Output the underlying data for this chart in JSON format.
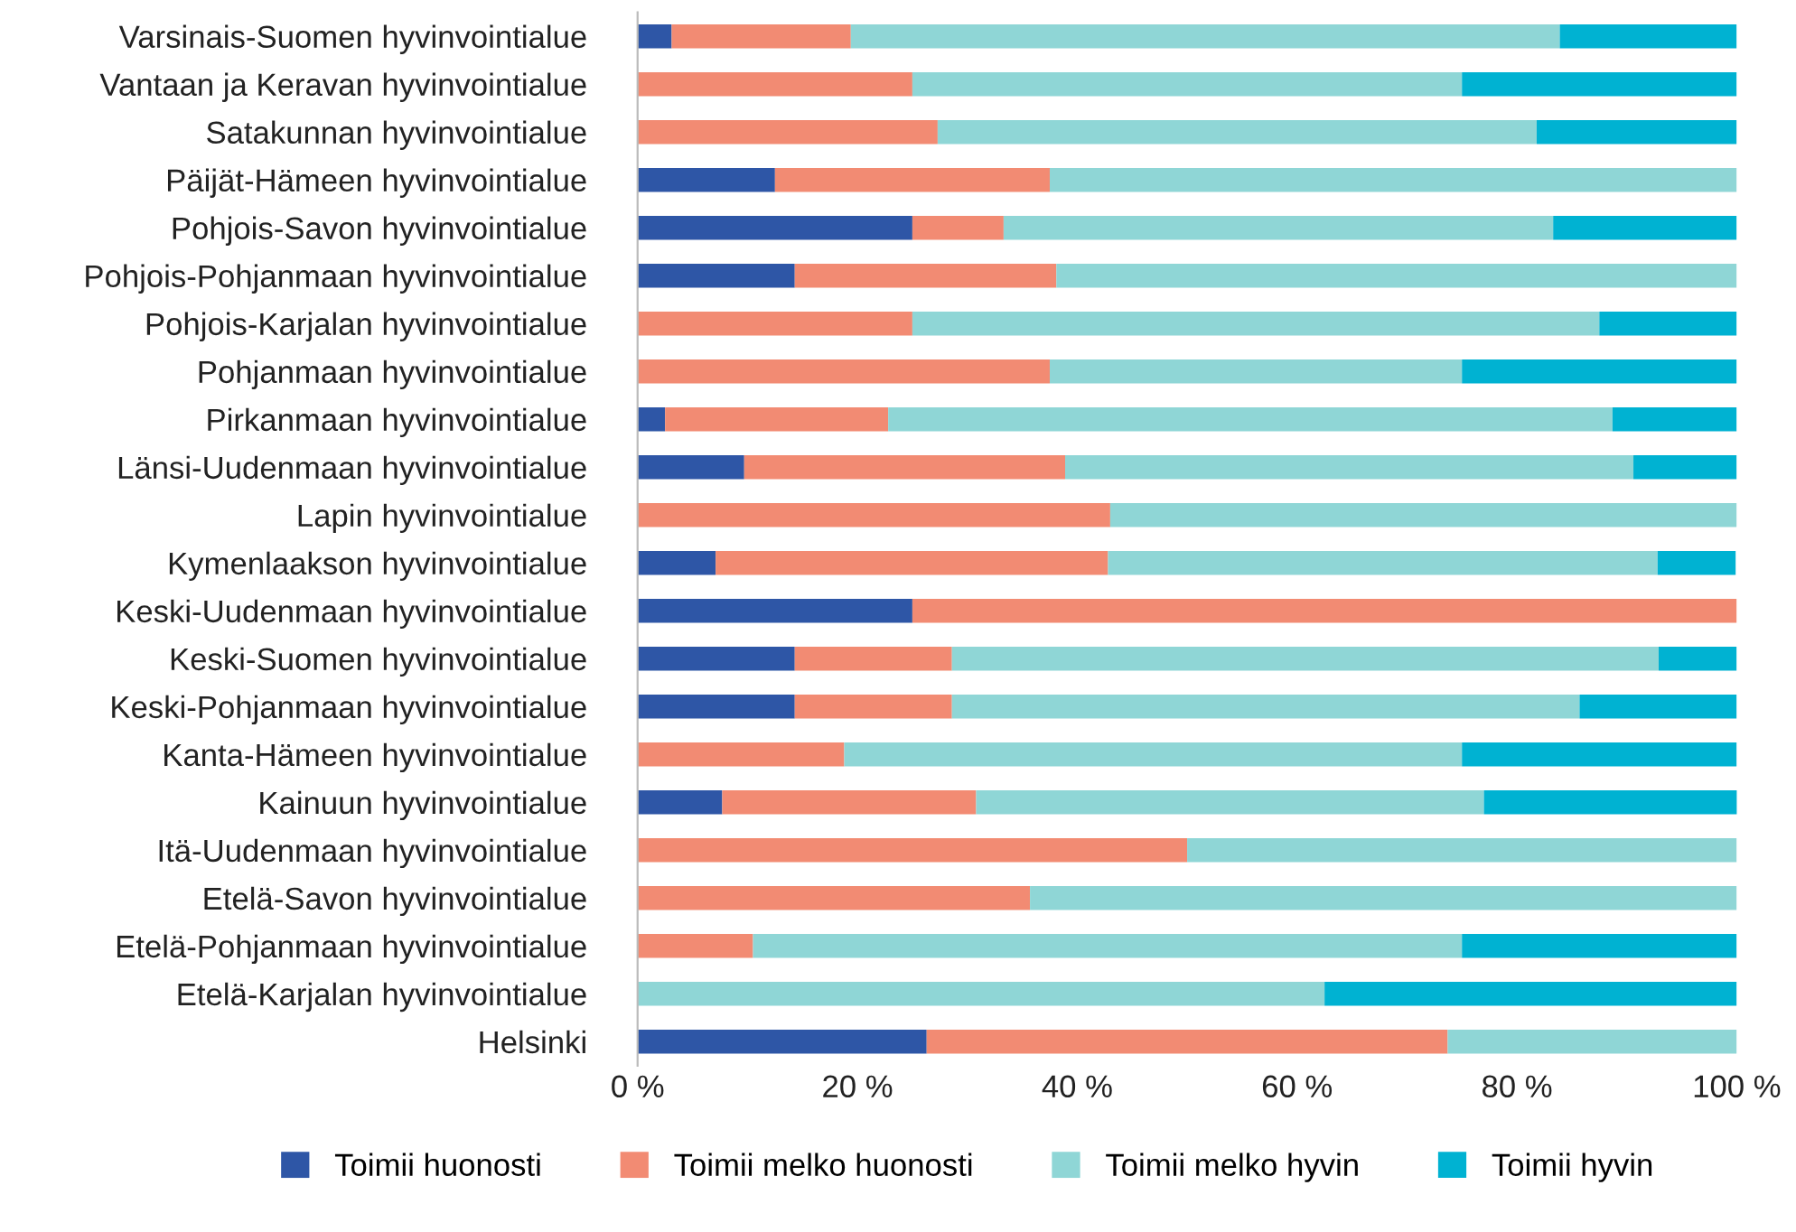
{
  "chart_data": {
    "type": "bar",
    "orientation": "horizontal",
    "stacked": true,
    "categories": [
      "Varsinais-Suomen hyvinvointialue",
      "Vantaan ja Keravan hyvinvointialue",
      "Satakunnan hyvinvointialue",
      "Päijät-Hämeen hyvinvointialue",
      "Pohjois-Savon hyvinvointialue",
      "Pohjois-Pohjanmaan hyvinvointialue",
      "Pohjois-Karjalan hyvinvointialue",
      "Pohjanmaan hyvinvointialue",
      "Pirkanmaan hyvinvointialue",
      "Länsi-Uudenmaan hyvinvointialue",
      "Lapin hyvinvointialue",
      "Kymenlaakson hyvinvointialue",
      "Keski-Uudenmaan hyvinvointialue",
      "Keski-Suomen hyvinvointialue",
      "Keski-Pohjanmaan hyvinvointialue",
      "Kanta-Hämeen hyvinvointialue",
      "Kainuun hyvinvointialue",
      "Itä-Uudenmaan hyvinvointialue",
      "Etelä-Savon hyvinvointialue",
      "Etelä-Pohjanmaan hyvinvointialue",
      "Etelä-Karjalan hyvinvointialue",
      "Helsinki"
    ],
    "series": [
      {
        "name": "Toimii huonosti",
        "color": "#2e56a6",
        "values": [
          3.1,
          0,
          0,
          12.5,
          25,
          14.3,
          0,
          0,
          2.5,
          9.7,
          0,
          7.1,
          25,
          14.3,
          14.3,
          0,
          7.7,
          0,
          0,
          0,
          0,
          26.3
        ]
      },
      {
        "name": "Toimii melko huonosti",
        "color": "#f28b73",
        "values": [
          16.3,
          25,
          27.3,
          25,
          8.3,
          23.8,
          25,
          37.5,
          20.3,
          29.2,
          43,
          35.7,
          75,
          14.3,
          14.3,
          18.8,
          23.1,
          50,
          35.7,
          10.5,
          0,
          47.4
        ]
      },
      {
        "name": "Toimii melko hyvin",
        "color": "#8fd6d6",
        "values": [
          64.5,
          50,
          54.5,
          62.5,
          50,
          61.9,
          62.5,
          37.5,
          65.9,
          51.7,
          57,
          50,
          0,
          64.3,
          57.1,
          56.2,
          46.2,
          50,
          64.3,
          64.5,
          62.5,
          26.3
        ]
      },
      {
        "name": "Toimii hyvin",
        "color": "#00b2d2",
        "values": [
          16.1,
          25,
          18.2,
          0,
          16.7,
          0,
          12.5,
          25,
          11.3,
          9.4,
          0,
          7.1,
          0,
          7.1,
          14.3,
          25,
          23.1,
          0,
          0,
          25,
          37.5,
          0
        ]
      }
    ],
    "xlim": [
      0,
      100
    ],
    "xticks": [
      {
        "value": 0,
        "label": "0 %"
      },
      {
        "value": 20,
        "label": "20 %"
      },
      {
        "value": 40,
        "label": "40 %"
      },
      {
        "value": 60,
        "label": "60 %"
      },
      {
        "value": 80,
        "label": "80 %"
      },
      {
        "value": 100,
        "label": "100 %"
      }
    ],
    "legend": "bottom",
    "grid": false
  }
}
